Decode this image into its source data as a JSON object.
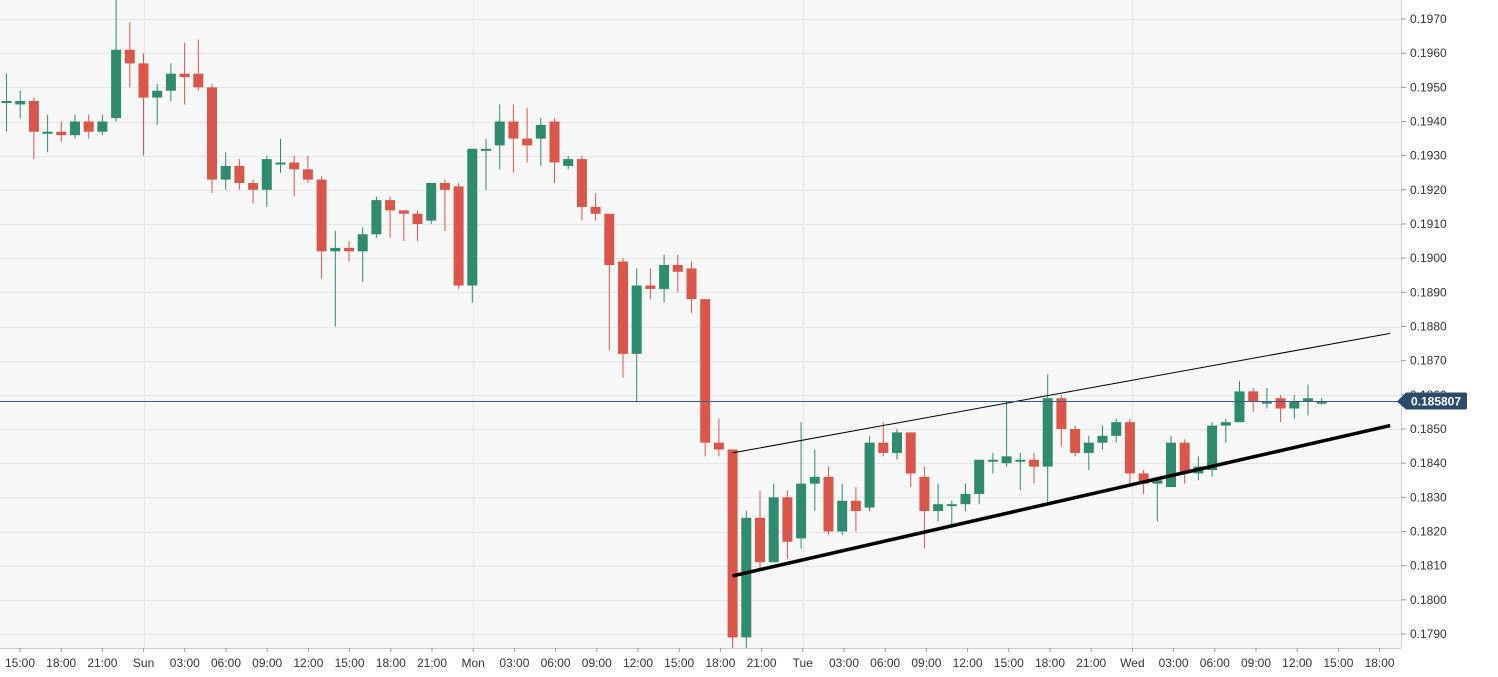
{
  "colors": {
    "background": "#f7f7f7",
    "grid": "#e6e6e6",
    "up": "#2e8b6e",
    "down": "#d9574a",
    "price_line": "#3d5a80",
    "price_tag_bg": "#2c4a6b",
    "trendline": "#000000"
  },
  "chart_data": {
    "type": "candlestick",
    "grid": true,
    "x_axis": "time",
    "y_axis_position": "right",
    "ylim": [
      0.1786,
      0.1976
    ],
    "y_ticks": [
      "0.1790",
      "0.1800",
      "0.1810",
      "0.1820",
      "0.1830",
      "0.1840",
      "0.1850",
      "0.1860",
      "0.1870",
      "0.1880",
      "0.1890",
      "0.1900",
      "0.1910",
      "0.1920",
      "0.1930",
      "0.1940",
      "0.1950",
      "0.1960",
      "0.1970"
    ],
    "x_ticks": [
      "15:00",
      "18:00",
      "21:00",
      "Sun",
      "03:00",
      "06:00",
      "09:00",
      "12:00",
      "15:00",
      "18:00",
      "21:00",
      "Mon",
      "03:00",
      "06:00",
      "09:00",
      "12:00",
      "15:00",
      "18:00",
      "21:00",
      "Tue",
      "03:00",
      "06:00",
      "09:00",
      "12:00",
      "15:00",
      "18:00",
      "21:00",
      "Wed",
      "03:00",
      "06:00",
      "09:00",
      "12:00",
      "15:00",
      "18:00"
    ],
    "current_price": 0.185807,
    "current_price_label": "0.185807",
    "candles": [
      [
        0.1946,
        0.1946,
        0.1954,
        0.1937
      ],
      [
        0.1945,
        0.1946,
        0.1949,
        0.1941
      ],
      [
        0.1946,
        0.1937,
        0.1947,
        0.1929
      ],
      [
        0.1937,
        0.1937,
        0.1942,
        0.1931
      ],
      [
        0.1937,
        0.1936,
        0.194,
        0.1934
      ],
      [
        0.1936,
        0.194,
        0.1942,
        0.1935
      ],
      [
        0.194,
        0.1937,
        0.1942,
        0.1935
      ],
      [
        0.1937,
        0.194,
        0.1942,
        0.1936
      ],
      [
        0.1941,
        0.1961,
        0.1976,
        0.194
      ],
      [
        0.1961,
        0.1957,
        0.1969,
        0.195
      ],
      [
        0.1957,
        0.1947,
        0.196,
        0.193
      ],
      [
        0.1947,
        0.1949,
        0.1951,
        0.1939
      ],
      [
        0.1949,
        0.1954,
        0.1957,
        0.1946
      ],
      [
        0.1954,
        0.1953,
        0.1963,
        0.1945
      ],
      [
        0.1954,
        0.195,
        0.1964,
        0.1949
      ],
      [
        0.195,
        0.1923,
        0.1951,
        0.1919
      ],
      [
        0.1923,
        0.1927,
        0.1931,
        0.192
      ],
      [
        0.1927,
        0.1922,
        0.1929,
        0.192
      ],
      [
        0.1922,
        0.192,
        0.1923,
        0.1916
      ],
      [
        0.192,
        0.1929,
        0.193,
        0.1915
      ],
      [
        0.1928,
        0.1928,
        0.1935,
        0.1925
      ],
      [
        0.1928,
        0.1926,
        0.193,
        0.1918
      ],
      [
        0.1926,
        0.1923,
        0.193,
        0.1922
      ],
      [
        0.1923,
        0.1902,
        0.1924,
        0.1894
      ],
      [
        0.1902,
        0.1903,
        0.1908,
        0.188
      ],
      [
        0.1903,
        0.1902,
        0.1905,
        0.1899
      ],
      [
        0.1902,
        0.1907,
        0.1909,
        0.1893
      ],
      [
        0.1907,
        0.1917,
        0.1918,
        0.1906
      ],
      [
        0.1917,
        0.1914,
        0.1918,
        0.1906
      ],
      [
        0.1914,
        0.1913,
        0.1914,
        0.1905
      ],
      [
        0.1913,
        0.191,
        0.1914,
        0.1905
      ],
      [
        0.1911,
        0.1922,
        0.1922,
        0.191
      ],
      [
        0.1922,
        0.192,
        0.1923,
        0.1908
      ],
      [
        0.1921,
        0.1892,
        0.1922,
        0.1891
      ],
      [
        0.1892,
        0.1932,
        0.1932,
        0.1887
      ],
      [
        0.1932,
        0.1932,
        0.1935,
        0.192
      ],
      [
        0.1933,
        0.194,
        0.1945,
        0.1926
      ],
      [
        0.194,
        0.1935,
        0.1945,
        0.1925
      ],
      [
        0.1935,
        0.1933,
        0.1944,
        0.1928
      ],
      [
        0.1935,
        0.1939,
        0.1941,
        0.1927
      ],
      [
        0.194,
        0.1928,
        0.1941,
        0.1922
      ],
      [
        0.1927,
        0.1929,
        0.193,
        0.1926
      ],
      [
        0.1929,
        0.1915,
        0.193,
        0.1911
      ],
      [
        0.1915,
        0.1913,
        0.1919,
        0.1911
      ],
      [
        0.1913,
        0.1898,
        0.1913,
        0.1873
      ],
      [
        0.1899,
        0.1872,
        0.19,
        0.1865
      ],
      [
        0.1872,
        0.1892,
        0.1897,
        0.1858
      ],
      [
        0.1892,
        0.1891,
        0.1897,
        0.1888
      ],
      [
        0.1891,
        0.1898,
        0.1901,
        0.1887
      ],
      [
        0.1898,
        0.1896,
        0.1901,
        0.189
      ],
      [
        0.1897,
        0.1888,
        0.1899,
        0.1884
      ],
      [
        0.1888,
        0.1846,
        0.1888,
        0.1842
      ],
      [
        0.1846,
        0.1844,
        0.1853,
        0.1842
      ],
      [
        0.1844,
        0.1789,
        0.1844,
        0.1785
      ],
      [
        0.1789,
        0.1824,
        0.1826,
        0.1785
      ],
      [
        0.1824,
        0.1811,
        0.1832,
        0.1809
      ],
      [
        0.1811,
        0.183,
        0.1834,
        0.1811
      ],
      [
        0.183,
        0.1817,
        0.1832,
        0.1812
      ],
      [
        0.1818,
        0.1834,
        0.1852,
        0.1815
      ],
      [
        0.1834,
        0.1836,
        0.1844,
        0.1826
      ],
      [
        0.1836,
        0.182,
        0.1839,
        0.1819
      ],
      [
        0.182,
        0.1829,
        0.1834,
        0.1819
      ],
      [
        0.1829,
        0.1826,
        0.1833,
        0.182
      ],
      [
        0.1827,
        0.1846,
        0.1848,
        0.1826
      ],
      [
        0.1846,
        0.1843,
        0.1852,
        0.1842
      ],
      [
        0.1843,
        0.1849,
        0.185,
        0.1841
      ],
      [
        0.1849,
        0.1837,
        0.1849,
        0.1833
      ],
      [
        0.1836,
        0.1826,
        0.1839,
        0.1815
      ],
      [
        0.1826,
        0.1828,
        0.1834,
        0.1823
      ],
      [
        0.1828,
        0.1828,
        0.1829,
        0.1821
      ],
      [
        0.1828,
        0.1831,
        0.1834,
        0.1826
      ],
      [
        0.1831,
        0.1841,
        0.1841,
        0.1828
      ],
      [
        0.1841,
        0.1841,
        0.1843,
        0.1837
      ],
      [
        0.184,
        0.1842,
        0.1858,
        0.1839
      ],
      [
        0.1841,
        0.1841,
        0.1843,
        0.1832
      ],
      [
        0.1841,
        0.1839,
        0.1843,
        0.1834
      ],
      [
        0.1839,
        0.1859,
        0.1866,
        0.1828
      ],
      [
        0.1859,
        0.185,
        0.186,
        0.1845
      ],
      [
        0.185,
        0.1843,
        0.1851,
        0.1842
      ],
      [
        0.1843,
        0.1846,
        0.1848,
        0.1838
      ],
      [
        0.1846,
        0.1848,
        0.1851,
        0.1844
      ],
      [
        0.1848,
        0.1852,
        0.1853,
        0.1846
      ],
      [
        0.1852,
        0.1837,
        0.1853,
        0.1834
      ],
      [
        0.1837,
        0.1834,
        0.1838,
        0.1831
      ],
      [
        0.1834,
        0.1835,
        0.1836,
        0.1823
      ],
      [
        0.1833,
        0.1846,
        0.1848,
        0.1833
      ],
      [
        0.1846,
        0.1837,
        0.1847,
        0.1834
      ],
      [
        0.1837,
        0.1839,
        0.1842,
        0.1835
      ],
      [
        0.1838,
        0.1851,
        0.1852,
        0.1836
      ],
      [
        0.1851,
        0.1852,
        0.1853,
        0.1846
      ],
      [
        0.1852,
        0.1861,
        0.1864,
        0.1852
      ],
      [
        0.1861,
        0.1858,
        0.1862,
        0.1855
      ],
      [
        0.1858,
        0.1858,
        0.1862,
        0.1856
      ],
      [
        0.1859,
        0.1856,
        0.186,
        0.1852
      ],
      [
        0.1856,
        0.1858,
        0.186,
        0.1853
      ],
      [
        0.1858,
        0.1859,
        0.1863,
        0.1854
      ],
      [
        0.1858,
        0.1858,
        0.1859,
        0.1857
      ]
    ],
    "annotations": [
      {
        "type": "trendline",
        "from": [
          53,
          0.1843
        ],
        "to": [
          101,
          0.1878
        ],
        "weight": "thin"
      },
      {
        "type": "trendline",
        "from": [
          53,
          0.1807
        ],
        "to": [
          101,
          0.1851
        ],
        "weight": "thick"
      }
    ]
  }
}
